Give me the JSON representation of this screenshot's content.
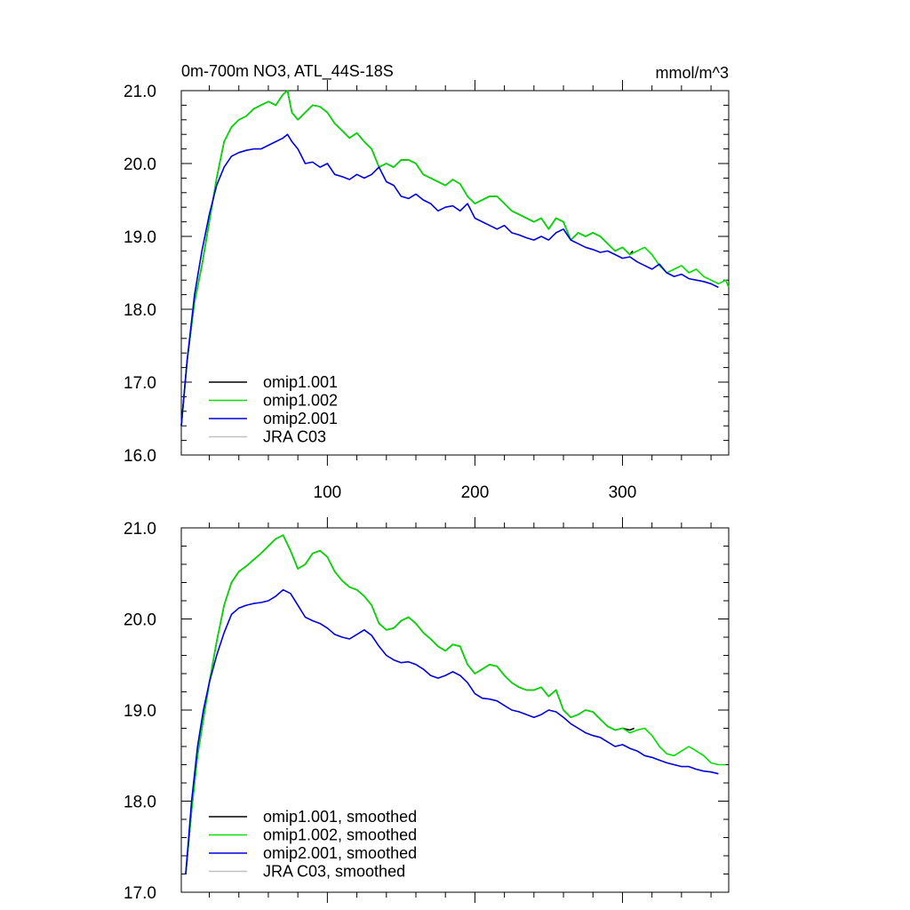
{
  "chart_data": [
    {
      "type": "line",
      "title": "0m-700m NO3, ATL_44S-18S",
      "units": "mmol/m^3",
      "xlim": [
        1,
        372
      ],
      "ylim": [
        16.0,
        21.0
      ],
      "xticks": [
        100,
        200,
        300
      ],
      "xtick_labels": [
        "100",
        "200",
        "300"
      ],
      "yticks": [
        16.0,
        17.0,
        18.0,
        19.0,
        20.0,
        21.0
      ],
      "ytick_labels": [
        "16.0",
        "17.0",
        "18.0",
        "19.0",
        "20.0",
        "21.0"
      ],
      "legend_position": "bottom-left",
      "legend": [
        "omip1.001",
        "omip1.002",
        "omip2.001",
        "JRA C03"
      ],
      "series": [
        {
          "name": "omip1.001",
          "color": "#000000",
          "x": [
            1,
            5,
            10,
            15,
            20,
            25,
            30,
            35,
            40,
            45,
            50,
            55,
            60,
            65,
            70,
            73,
            76,
            80,
            85,
            90,
            95,
            100,
            105,
            110,
            115,
            120,
            125,
            130,
            135,
            140,
            145,
            150,
            155,
            160,
            165,
            170,
            175,
            180,
            185,
            190,
            195,
            200,
            205,
            210,
            215,
            220,
            225,
            230,
            235,
            240,
            245,
            250,
            255,
            260,
            265,
            270,
            275,
            280,
            285,
            290,
            295,
            300,
            305,
            307
          ],
          "y": [
            16.4,
            17.3,
            18.1,
            18.6,
            19.2,
            19.8,
            20.3,
            20.5,
            20.6,
            20.65,
            20.75,
            20.8,
            20.85,
            20.8,
            20.95,
            21.0,
            20.7,
            20.6,
            20.7,
            20.8,
            20.78,
            20.7,
            20.55,
            20.45,
            20.35,
            20.42,
            20.3,
            20.2,
            19.95,
            20.0,
            19.95,
            20.05,
            20.05,
            20.0,
            19.85,
            19.8,
            19.75,
            19.7,
            19.78,
            19.72,
            19.55,
            19.45,
            19.5,
            19.55,
            19.55,
            19.45,
            19.35,
            19.3,
            19.25,
            19.2,
            19.25,
            19.1,
            19.25,
            19.2,
            18.95,
            19.05,
            19.0,
            19.05,
            19.0,
            18.9,
            18.8,
            18.85,
            18.75,
            18.8
          ]
        },
        {
          "name": "omip1.002",
          "color": "#00e000",
          "x": [
            1,
            5,
            10,
            15,
            20,
            25,
            30,
            35,
            40,
            45,
            50,
            55,
            60,
            65,
            70,
            73,
            76,
            80,
            85,
            90,
            95,
            100,
            105,
            110,
            115,
            120,
            125,
            130,
            135,
            140,
            145,
            150,
            155,
            160,
            165,
            170,
            175,
            180,
            185,
            190,
            195,
            200,
            205,
            210,
            215,
            220,
            225,
            230,
            235,
            240,
            245,
            250,
            255,
            260,
            265,
            270,
            275,
            280,
            285,
            290,
            295,
            300,
            305,
            310,
            315,
            320,
            325,
            330,
            335,
            340,
            345,
            350,
            355,
            360,
            365,
            370,
            372
          ],
          "y": [
            16.4,
            17.3,
            18.1,
            18.6,
            19.2,
            19.8,
            20.3,
            20.5,
            20.6,
            20.65,
            20.75,
            20.8,
            20.85,
            20.8,
            20.95,
            21.0,
            20.7,
            20.6,
            20.7,
            20.8,
            20.78,
            20.7,
            20.55,
            20.45,
            20.35,
            20.42,
            20.3,
            20.2,
            19.95,
            20.0,
            19.95,
            20.05,
            20.05,
            20.0,
            19.85,
            19.8,
            19.75,
            19.7,
            19.78,
            19.72,
            19.55,
            19.45,
            19.5,
            19.55,
            19.55,
            19.45,
            19.35,
            19.3,
            19.25,
            19.2,
            19.25,
            19.1,
            19.25,
            19.2,
            18.95,
            19.05,
            19.0,
            19.05,
            19.0,
            18.9,
            18.8,
            18.85,
            18.75,
            18.8,
            18.85,
            18.75,
            18.6,
            18.5,
            18.55,
            18.6,
            18.5,
            18.55,
            18.45,
            18.4,
            18.35,
            18.4,
            18.3
          ]
        },
        {
          "name": "omip2.001",
          "color": "#0000e0",
          "x": [
            1,
            5,
            10,
            15,
            20,
            25,
            30,
            35,
            40,
            45,
            50,
            55,
            60,
            65,
            70,
            73,
            76,
            80,
            85,
            90,
            95,
            100,
            105,
            110,
            115,
            120,
            125,
            130,
            135,
            140,
            145,
            150,
            155,
            160,
            165,
            170,
            175,
            180,
            185,
            190,
            195,
            200,
            205,
            210,
            215,
            220,
            225,
            230,
            235,
            240,
            245,
            250,
            255,
            260,
            265,
            270,
            275,
            280,
            285,
            290,
            295,
            300,
            305,
            310,
            315,
            320,
            325,
            330,
            335,
            340,
            345,
            350,
            355,
            360,
            365
          ],
          "y": [
            16.4,
            17.3,
            18.2,
            18.8,
            19.3,
            19.7,
            19.95,
            20.1,
            20.15,
            20.18,
            20.2,
            20.2,
            20.25,
            20.3,
            20.35,
            20.4,
            20.3,
            20.2,
            20.0,
            20.02,
            19.95,
            20.0,
            19.85,
            19.82,
            19.78,
            19.85,
            19.8,
            19.85,
            19.95,
            19.75,
            19.7,
            19.55,
            19.52,
            19.58,
            19.5,
            19.45,
            19.35,
            19.4,
            19.42,
            19.35,
            19.45,
            19.25,
            19.2,
            19.15,
            19.1,
            19.15,
            19.05,
            19.02,
            18.98,
            18.95,
            19.0,
            18.95,
            19.05,
            19.1,
            18.95,
            18.9,
            18.85,
            18.82,
            18.78,
            18.8,
            18.75,
            18.7,
            18.72,
            18.65,
            18.6,
            18.55,
            18.62,
            18.5,
            18.45,
            18.48,
            18.42,
            18.4,
            18.38,
            18.35,
            18.3
          ]
        },
        {
          "name": "JRA C03",
          "color": "#c0c0c0",
          "x": [],
          "y": []
        }
      ]
    },
    {
      "type": "line",
      "xlim": [
        1,
        372
      ],
      "ylim": [
        17.0,
        21.0
      ],
      "xticks": [
        100,
        200,
        300
      ],
      "yticks": [
        17.0,
        18.0,
        19.0,
        20.0,
        21.0
      ],
      "ytick_labels": [
        "17.0",
        "18.0",
        "19.0",
        "20.0",
        "21.0"
      ],
      "legend_position": "bottom-left",
      "legend": [
        "omip1.001, smoothed",
        "omip1.002, smoothed",
        "omip2.001, smoothed",
        "JRA C03, smoothed"
      ],
      "series": [
        {
          "name": "omip1.001, smoothed",
          "color": "#000000",
          "x": [
            4,
            8,
            12,
            16,
            20,
            25,
            30,
            35,
            40,
            45,
            50,
            55,
            60,
            65,
            70,
            75,
            80,
            85,
            90,
            95,
            100,
            105,
            110,
            115,
            120,
            125,
            130,
            135,
            140,
            145,
            150,
            155,
            160,
            165,
            170,
            175,
            180,
            185,
            190,
            195,
            200,
            205,
            210,
            215,
            220,
            225,
            230,
            235,
            240,
            245,
            250,
            255,
            260,
            265,
            270,
            275,
            280,
            285,
            290,
            295,
            300,
            305,
            308
          ],
          "y": [
            17.2,
            17.9,
            18.5,
            18.9,
            19.3,
            19.75,
            20.15,
            20.4,
            20.52,
            20.58,
            20.65,
            20.72,
            20.8,
            20.88,
            20.92,
            20.75,
            20.55,
            20.6,
            20.72,
            20.75,
            20.68,
            20.52,
            20.42,
            20.35,
            20.32,
            20.25,
            20.15,
            19.95,
            19.88,
            19.9,
            19.98,
            20.02,
            19.95,
            19.85,
            19.78,
            19.7,
            19.65,
            19.72,
            19.7,
            19.5,
            19.4,
            19.45,
            19.5,
            19.48,
            19.38,
            19.3,
            19.25,
            19.22,
            19.22,
            19.25,
            19.15,
            19.22,
            19.0,
            18.92,
            18.95,
            19.0,
            18.98,
            18.9,
            18.82,
            18.78,
            18.8,
            18.78,
            18.8
          ]
        },
        {
          "name": "omip1.002, smoothed",
          "color": "#00e000",
          "x": [
            4,
            8,
            12,
            16,
            20,
            25,
            30,
            35,
            40,
            45,
            50,
            55,
            60,
            65,
            70,
            75,
            80,
            85,
            90,
            95,
            100,
            105,
            110,
            115,
            120,
            125,
            130,
            135,
            140,
            145,
            150,
            155,
            160,
            165,
            170,
            175,
            180,
            185,
            190,
            195,
            200,
            205,
            210,
            215,
            220,
            225,
            230,
            235,
            240,
            245,
            250,
            255,
            260,
            265,
            270,
            275,
            280,
            285,
            290,
            295,
            300,
            305,
            310,
            315,
            320,
            325,
            330,
            335,
            340,
            345,
            350,
            355,
            360,
            365,
            370
          ],
          "y": [
            17.2,
            17.9,
            18.5,
            18.9,
            19.3,
            19.75,
            20.15,
            20.4,
            20.52,
            20.58,
            20.65,
            20.72,
            20.8,
            20.88,
            20.92,
            20.75,
            20.55,
            20.6,
            20.72,
            20.75,
            20.68,
            20.52,
            20.42,
            20.35,
            20.32,
            20.25,
            20.15,
            19.95,
            19.88,
            19.9,
            19.98,
            20.02,
            19.95,
            19.85,
            19.78,
            19.7,
            19.65,
            19.72,
            19.7,
            19.5,
            19.4,
            19.45,
            19.5,
            19.48,
            19.38,
            19.3,
            19.25,
            19.22,
            19.22,
            19.25,
            19.15,
            19.22,
            19.0,
            18.92,
            18.95,
            19.0,
            18.98,
            18.9,
            18.82,
            18.78,
            18.8,
            18.75,
            18.78,
            18.8,
            18.72,
            18.6,
            18.52,
            18.5,
            18.55,
            18.6,
            18.55,
            18.5,
            18.42,
            18.4,
            18.4
          ]
        },
        {
          "name": "omip2.001, smoothed",
          "color": "#0000e0",
          "x": [
            4,
            8,
            12,
            16,
            20,
            25,
            30,
            35,
            40,
            45,
            50,
            55,
            60,
            65,
            70,
            75,
            80,
            85,
            90,
            95,
            100,
            105,
            110,
            115,
            120,
            125,
            130,
            135,
            140,
            145,
            150,
            155,
            160,
            165,
            170,
            175,
            180,
            185,
            190,
            195,
            200,
            205,
            210,
            215,
            220,
            225,
            230,
            235,
            240,
            245,
            250,
            255,
            260,
            265,
            270,
            275,
            280,
            285,
            290,
            295,
            300,
            305,
            310,
            315,
            320,
            325,
            330,
            335,
            340,
            345,
            350,
            355,
            360,
            365
          ],
          "y": [
            17.2,
            18.0,
            18.6,
            19.0,
            19.3,
            19.6,
            19.85,
            20.05,
            20.12,
            20.15,
            20.17,
            20.18,
            20.2,
            20.25,
            20.32,
            20.28,
            20.15,
            20.02,
            19.98,
            19.95,
            19.9,
            19.83,
            19.8,
            19.78,
            19.83,
            19.88,
            19.82,
            19.7,
            19.6,
            19.55,
            19.52,
            19.53,
            19.5,
            19.45,
            19.38,
            19.35,
            19.38,
            19.42,
            19.38,
            19.3,
            19.18,
            19.13,
            19.12,
            19.1,
            19.05,
            19.0,
            18.98,
            18.95,
            18.92,
            18.95,
            19.0,
            18.98,
            18.92,
            18.85,
            18.8,
            18.75,
            18.72,
            18.7,
            18.65,
            18.6,
            18.62,
            18.58,
            18.55,
            18.5,
            18.48,
            18.45,
            18.42,
            18.4,
            18.38,
            18.38,
            18.35,
            18.33,
            18.32,
            18.3
          ]
        },
        {
          "name": "JRA C03, smoothed",
          "color": "#c0c0c0",
          "x": [],
          "y": []
        }
      ]
    }
  ]
}
